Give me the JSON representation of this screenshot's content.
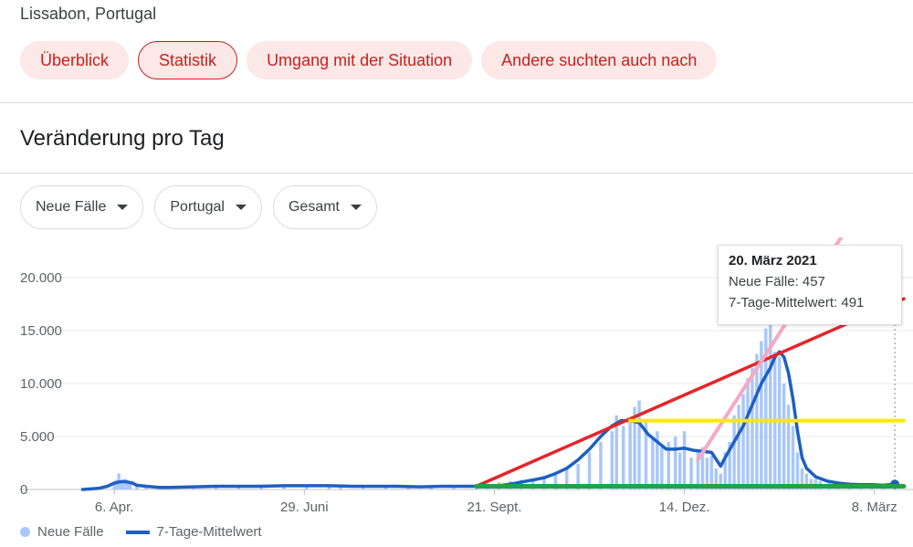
{
  "location": "Lissabon, Portugal",
  "tabs": [
    {
      "label": "Überblick",
      "active": false
    },
    {
      "label": "Statistik",
      "active": true
    },
    {
      "label": "Umgang mit der Situation",
      "active": false
    },
    {
      "label": "Andere suchten auch nach",
      "active": false
    }
  ],
  "section_title": "Veränderung pro Tag",
  "filters": [
    {
      "label": "Neue Fälle"
    },
    {
      "label": "Portugal"
    },
    {
      "label": "Gesamt"
    }
  ],
  "tooltip": {
    "date": "20. März 2021",
    "new_cases": "Neue Fälle: 457",
    "avg": "7-Tage-Mittelwert: 491"
  },
  "legend": {
    "bars": "Neue Fälle",
    "line": "7-Tage-Mittelwert"
  },
  "colors": {
    "accent": "#c5221f",
    "bars": "#a8c7fa",
    "avg_line": "#1e5fc2",
    "red_overlay": "#e3262a",
    "pink_overlay": "#f4a9c4",
    "yellow_overlay": "#f7ea00",
    "green_overlay": "#22a24a"
  },
  "chart_data": {
    "type": "bar",
    "title": "",
    "xlabel": "",
    "ylabel": "",
    "ylim": [
      0,
      20000
    ],
    "y_ticks": [
      "20.000",
      "15.000",
      "10.000",
      "5.000",
      "0"
    ],
    "y_tick_values": [
      20000,
      15000,
      10000,
      5000,
      0
    ],
    "x_ticks": [
      "6. Apr.",
      "29. Juni",
      "21. Sept.",
      "14. Dez.",
      "8. März"
    ],
    "x_tick_days": [
      0,
      84,
      168,
      252,
      336
    ],
    "x_range_days": [
      -15,
      349
    ],
    "series": [
      {
        "name": "Neue Fälle",
        "kind": "bar",
        "points": [
          [
            -14,
            20
          ],
          [
            -7,
            150
          ],
          [
            0,
            650
          ],
          [
            1,
            900
          ],
          [
            2,
            1500
          ],
          [
            3,
            700
          ],
          [
            4,
            900
          ],
          [
            5,
            1000
          ],
          [
            6,
            800
          ],
          [
            7,
            600
          ],
          [
            10,
            500
          ],
          [
            14,
            400
          ],
          [
            20,
            200
          ],
          [
            25,
            250
          ],
          [
            35,
            250
          ],
          [
            45,
            300
          ],
          [
            55,
            300
          ],
          [
            65,
            350
          ],
          [
            75,
            350
          ],
          [
            85,
            350
          ],
          [
            95,
            350
          ],
          [
            100,
            300
          ],
          [
            110,
            300
          ],
          [
            120,
            300
          ],
          [
            130,
            250
          ],
          [
            140,
            300
          ],
          [
            150,
            300
          ],
          [
            160,
            350
          ],
          [
            165,
            500
          ],
          [
            170,
            700
          ],
          [
            175,
            800
          ],
          [
            180,
            900
          ],
          [
            185,
            1000
          ],
          [
            190,
            1300
          ],
          [
            195,
            1500
          ],
          [
            200,
            1900
          ],
          [
            205,
            2400
          ],
          [
            210,
            3500
          ],
          [
            215,
            4500
          ],
          [
            220,
            5500
          ],
          [
            222,
            7000
          ],
          [
            225,
            6000
          ],
          [
            228,
            6500
          ],
          [
            230,
            7800
          ],
          [
            232,
            8400
          ],
          [
            235,
            6500
          ],
          [
            238,
            5000
          ],
          [
            240,
            5500
          ],
          [
            242,
            4000
          ],
          [
            245,
            4500
          ],
          [
            248,
            5000
          ],
          [
            250,
            3500
          ],
          [
            252,
            5500
          ],
          [
            255,
            3000
          ],
          [
            258,
            3600
          ],
          [
            260,
            4000
          ],
          [
            262,
            3000
          ],
          [
            264,
            3200
          ],
          [
            266,
            2000
          ],
          [
            268,
            1500
          ],
          [
            270,
            3500
          ],
          [
            272,
            4500
          ],
          [
            274,
            7000
          ],
          [
            276,
            8000
          ],
          [
            278,
            9000
          ],
          [
            280,
            10500
          ],
          [
            282,
            11500
          ],
          [
            284,
            12800
          ],
          [
            286,
            14000
          ],
          [
            288,
            15200
          ],
          [
            290,
            16400
          ],
          [
            292,
            13000
          ],
          [
            294,
            12500
          ],
          [
            296,
            10000
          ],
          [
            298,
            8000
          ],
          [
            300,
            6000
          ],
          [
            302,
            3500
          ],
          [
            304,
            2000
          ],
          [
            306,
            1500
          ],
          [
            308,
            1000
          ],
          [
            310,
            1000
          ],
          [
            312,
            800
          ],
          [
            316,
            700
          ],
          [
            320,
            600
          ],
          [
            325,
            500
          ],
          [
            330,
            500
          ],
          [
            335,
            500
          ],
          [
            340,
            450
          ],
          [
            345,
            457
          ]
        ]
      },
      {
        "name": "7-Tage-Mittelwert",
        "kind": "line",
        "points": [
          [
            -14,
            0
          ],
          [
            -7,
            100
          ],
          [
            -3,
            300
          ],
          [
            0,
            600
          ],
          [
            2,
            700
          ],
          [
            4,
            750
          ],
          [
            6,
            700
          ],
          [
            8,
            600
          ],
          [
            10,
            400
          ],
          [
            14,
            300
          ],
          [
            20,
            200
          ],
          [
            25,
            200
          ],
          [
            35,
            250
          ],
          [
            45,
            300
          ],
          [
            55,
            300
          ],
          [
            65,
            300
          ],
          [
            75,
            350
          ],
          [
            85,
            350
          ],
          [
            95,
            350
          ],
          [
            105,
            300
          ],
          [
            115,
            300
          ],
          [
            125,
            300
          ],
          [
            135,
            250
          ],
          [
            145,
            300
          ],
          [
            160,
            300
          ],
          [
            170,
            350
          ],
          [
            175,
            500
          ],
          [
            180,
            700
          ],
          [
            185,
            900
          ],
          [
            190,
            1100
          ],
          [
            195,
            1500
          ],
          [
            200,
            2000
          ],
          [
            205,
            2800
          ],
          [
            210,
            3800
          ],
          [
            215,
            5000
          ],
          [
            220,
            6000
          ],
          [
            224,
            6500
          ],
          [
            228,
            6500
          ],
          [
            232,
            6300
          ],
          [
            236,
            5200
          ],
          [
            240,
            4500
          ],
          [
            244,
            3800
          ],
          [
            248,
            3800
          ],
          [
            252,
            3900
          ],
          [
            256,
            3700
          ],
          [
            260,
            3600
          ],
          [
            264,
            3500
          ],
          [
            268,
            2200
          ],
          [
            270,
            3000
          ],
          [
            274,
            4500
          ],
          [
            278,
            6000
          ],
          [
            282,
            8000
          ],
          [
            286,
            10000
          ],
          [
            290,
            11500
          ],
          [
            292,
            12500
          ],
          [
            294,
            13000
          ],
          [
            296,
            12500
          ],
          [
            298,
            11000
          ],
          [
            300,
            8500
          ],
          [
            302,
            5500
          ],
          [
            304,
            3000
          ],
          [
            306,
            2000
          ],
          [
            310,
            1200
          ],
          [
            315,
            800
          ],
          [
            320,
            600
          ],
          [
            325,
            500
          ],
          [
            330,
            450
          ],
          [
            335,
            450
          ],
          [
            340,
            400
          ],
          [
            345,
            491
          ]
        ]
      }
    ],
    "overlays": [
      {
        "kind": "red-line",
        "from": [
          160,
          300
        ],
        "to": [
          349,
          18000
        ]
      },
      {
        "kind": "pink-line",
        "from": [
          258,
          2800
        ],
        "to": [
          349,
          33000
        ]
      },
      {
        "kind": "yellow-line",
        "from": [
          228,
          6500
        ],
        "to": [
          349,
          6500
        ]
      },
      {
        "kind": "green-line",
        "from": [
          160,
          300
        ],
        "to": [
          349,
          300
        ]
      }
    ],
    "highlight_day": 345,
    "grid": true,
    "legend_position": "bottom-left"
  }
}
